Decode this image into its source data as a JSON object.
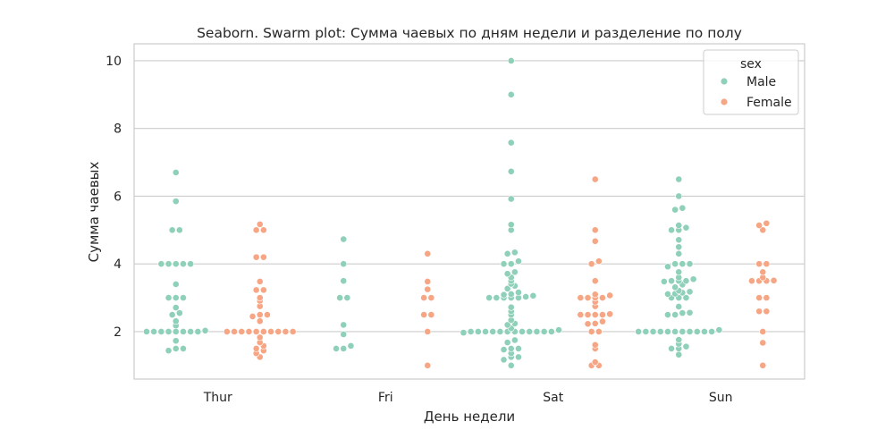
{
  "chart_data": {
    "type": "swarm",
    "title": "Seaborn. Swarm plot: Сумма чаевых по дням недели и разделение по полу",
    "xlabel": "День недели",
    "ylabel": "Сумма чаевых",
    "categories": [
      "Thur",
      "Fri",
      "Sat",
      "Sun"
    ],
    "ylim": [
      0.6,
      10.5
    ],
    "yticks": [
      2,
      4,
      6,
      8,
      10
    ],
    "grid": "horizontal",
    "legend": {
      "title": "sex",
      "placement": "top-right"
    },
    "colors": {
      "Male": "#8fd0b8",
      "Female": "#f6a684"
    },
    "series": [
      {
        "name": "Male",
        "values": {
          "Thur": [
            6.7,
            5.85,
            5.0,
            5.0,
            4.0,
            4.0,
            4.0,
            4.0,
            4.0,
            3.4,
            3.0,
            3.0,
            3.0,
            2.71,
            2.5,
            2.55,
            2.31,
            2.18,
            2.03,
            2.0,
            2.0,
            2.0,
            2.0,
            2.0,
            2.0,
            2.0,
            2.0,
            1.73,
            1.5,
            1.44,
            1.5
          ],
          "Fri": [
            4.73,
            4.0,
            3.5,
            3.0,
            3.0,
            2.2,
            1.92,
            1.5,
            1.5,
            1.58
          ],
          "Sat": [
            10.0,
            9.0,
            7.58,
            6.73,
            5.92,
            5.16,
            5.0,
            4.34,
            4.3,
            4.08,
            4.0,
            4.0,
            3.76,
            3.71,
            3.6,
            3.5,
            3.41,
            3.35,
            3.27,
            3.16,
            3.11,
            3.09,
            3.06,
            3.03,
            3.0,
            3.0,
            3.0,
            3.0,
            3.0,
            2.72,
            2.6,
            2.5,
            2.34,
            2.24,
            2.2,
            2.05,
            2.0,
            2.0,
            2.0,
            2.0,
            2.0,
            2.0,
            2.0,
            2.0,
            2.0,
            2.0,
            2.0,
            2.0,
            2.1,
            1.97,
            1.75,
            1.68,
            1.5,
            1.5,
            1.47,
            1.36,
            1.25,
            1.17,
            1.25,
            1.0
          ],
          "Sun": [
            6.5,
            6.0,
            5.65,
            5.6,
            5.07,
            5.14,
            5.0,
            5.0,
            4.71,
            4.5,
            4.3,
            4.0,
            4.0,
            4.0,
            3.92,
            3.76,
            3.6,
            3.55,
            3.5,
            3.5,
            3.5,
            3.48,
            3.39,
            3.31,
            3.21,
            3.18,
            3.12,
            3.15,
            3.11,
            3.0,
            3.0,
            3.0,
            2.74,
            2.56,
            2.5,
            2.5,
            2.55,
            2.0,
            2.0,
            2.0,
            2.0,
            2.0,
            2.0,
            2.0,
            2.0,
            2.0,
            2.0,
            2.0,
            2.05,
            1.76,
            1.64,
            1.56,
            1.5,
            1.5,
            1.32
          ]
        }
      },
      {
        "name": "Female",
        "values": {
          "Thur": [
            5.17,
            5.0,
            5.0,
            4.2,
            4.2,
            3.48,
            3.23,
            3.23,
            3.0,
            2.91,
            2.75,
            2.5,
            2.5,
            2.45,
            2.31,
            2.0,
            2.0,
            2.0,
            2.0,
            2.0,
            2.0,
            2.0,
            2.0,
            2.0,
            2.0,
            1.83,
            1.68,
            1.58,
            1.5,
            1.44,
            1.36,
            1.25
          ],
          "Fri": [
            4.3,
            3.48,
            3.25,
            3.0,
            3.0,
            2.5,
            2.5,
            2.0,
            1.0
          ],
          "Sat": [
            6.5,
            5.0,
            4.67,
            4.08,
            4.0,
            3.5,
            3.1,
            3.0,
            3.0,
            3.07,
            3.0,
            3.0,
            2.88,
            2.75,
            2.5,
            2.5,
            2.52,
            2.5,
            2.5,
            2.3,
            2.24,
            2.23,
            2.0,
            2.0,
            1.61,
            1.5,
            1.1,
            1.0,
            1.0
          ],
          "Sun": [
            5.14,
            5.2,
            5.0,
            4.0,
            4.0,
            3.76,
            3.5,
            3.5,
            3.5,
            3.51,
            3.6,
            3.0,
            3.0,
            2.6,
            2.6,
            2.0,
            1.67,
            1.0
          ]
        }
      }
    ]
  }
}
